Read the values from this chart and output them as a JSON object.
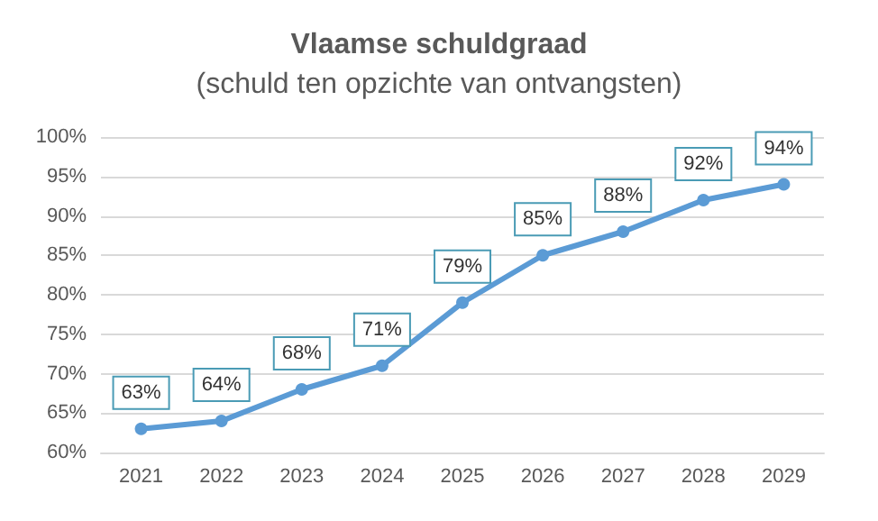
{
  "chart_data": {
    "type": "line",
    "title": "Vlaamse schuldgraad",
    "subtitle": "(schuld ten opzichte van ontvangsten)",
    "categories": [
      "2021",
      "2022",
      "2023",
      "2024",
      "2025",
      "2026",
      "2027",
      "2028",
      "2029"
    ],
    "series": [
      {
        "color": "#5b9bd5",
        "values": [
          63,
          64,
          68,
          71,
          79,
          85,
          88,
          92,
          94
        ],
        "value_labels": [
          "63%",
          "64%",
          "68%",
          "71%",
          "79%",
          "85%",
          "88%",
          "92%",
          "94%"
        ]
      }
    ],
    "ylim": [
      60,
      100
    ],
    "yticks": [
      {
        "value": 60,
        "label": "60%"
      },
      {
        "value": 65,
        "label": "65%"
      },
      {
        "value": 70,
        "label": "70%"
      },
      {
        "value": 75,
        "label": "75%"
      },
      {
        "value": 80,
        "label": "80%"
      },
      {
        "value": 85,
        "label": "85%"
      },
      {
        "value": 90,
        "label": "90%"
      },
      {
        "value": 95,
        "label": "95%"
      },
      {
        "value": 100,
        "label": "100%"
      }
    ],
    "grid": "y",
    "marker": "circle",
    "line_style": "solid"
  }
}
